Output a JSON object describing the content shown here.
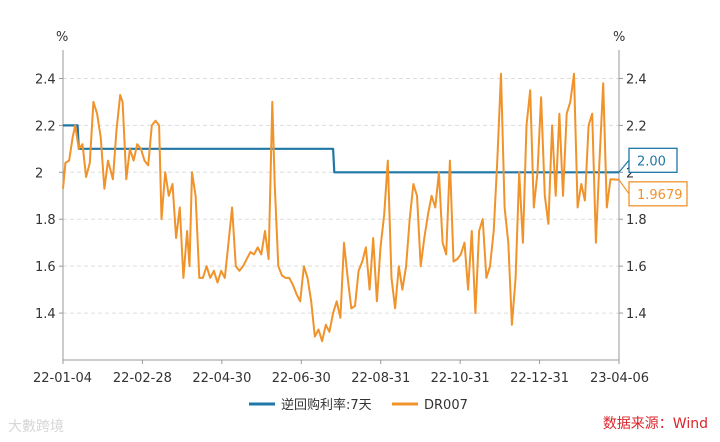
{
  "chart_data": {
    "type": "line",
    "unit_left": "%",
    "unit_right": "%",
    "ylim": [
      1.2,
      2.5
    ],
    "yticks": [
      "1.4",
      "1.6",
      "1.8",
      "2",
      "2.2",
      "2.4"
    ],
    "x_ticks": [
      "22-01-04",
      "22-02-28",
      "22-04-30",
      "22-06-30",
      "22-08-31",
      "22-10-31",
      "22-12-31",
      "23-04-06"
    ],
    "x_start": "2022-01-04",
    "x_end": "2023-04-06",
    "grid": "horizontal dashed",
    "legend_position": "bottom",
    "series": [
      {
        "name": "逆回购利率:7天",
        "color": "#1f77a8",
        "points": [
          [
            "2022-01-04",
            2.2
          ],
          [
            "2022-01-16",
            2.2
          ],
          [
            "2022-01-17",
            2.1
          ],
          [
            "2022-08-14",
            2.1
          ],
          [
            "2022-08-15",
            2.0
          ],
          [
            "2023-04-06",
            2.0
          ]
        ],
        "end_label": "2.00"
      },
      {
        "name": "DR007",
        "color": "#f0932b",
        "points": [
          [
            "2022-01-04",
            1.93
          ],
          [
            "2022-01-06",
            2.04
          ],
          [
            "2022-01-09",
            2.05
          ],
          [
            "2022-01-12",
            2.15
          ],
          [
            "2022-01-14",
            2.2
          ],
          [
            "2022-01-17",
            2.1
          ],
          [
            "2022-01-20",
            2.12
          ],
          [
            "2022-01-23",
            1.98
          ],
          [
            "2022-01-26",
            2.04
          ],
          [
            "2022-01-29",
            2.3
          ],
          [
            "2022-02-01",
            2.25
          ],
          [
            "2022-02-04",
            2.15
          ],
          [
            "2022-02-07",
            1.93
          ],
          [
            "2022-02-10",
            2.05
          ],
          [
            "2022-02-14",
            1.97
          ],
          [
            "2022-02-17",
            2.18
          ],
          [
            "2022-02-20",
            2.33
          ],
          [
            "2022-02-22",
            2.3
          ],
          [
            "2022-02-25",
            1.97
          ],
          [
            "2022-02-28",
            2.1
          ],
          [
            "2022-03-03",
            2.05
          ],
          [
            "2022-03-06",
            2.12
          ],
          [
            "2022-03-09",
            2.1
          ],
          [
            "2022-03-12",
            2.05
          ],
          [
            "2022-03-15",
            2.03
          ],
          [
            "2022-03-18",
            2.2
          ],
          [
            "2022-03-21",
            2.22
          ],
          [
            "2022-03-24",
            2.2
          ],
          [
            "2022-03-26",
            1.8
          ],
          [
            "2022-03-29",
            2.0
          ],
          [
            "2022-04-01",
            1.9
          ],
          [
            "2022-04-04",
            1.95
          ],
          [
            "2022-04-07",
            1.72
          ],
          [
            "2022-04-10",
            1.85
          ],
          [
            "2022-04-13",
            1.55
          ],
          [
            "2022-04-16",
            1.75
          ],
          [
            "2022-04-18",
            1.6
          ],
          [
            "2022-04-20",
            2.0
          ],
          [
            "2022-04-23",
            1.9
          ],
          [
            "2022-04-26",
            1.55
          ],
          [
            "2022-04-29",
            1.55
          ],
          [
            "2022-05-02",
            1.6
          ],
          [
            "2022-05-05",
            1.55
          ],
          [
            "2022-05-08",
            1.58
          ],
          [
            "2022-05-11",
            1.53
          ],
          [
            "2022-05-14",
            1.58
          ],
          [
            "2022-05-17",
            1.55
          ],
          [
            "2022-05-20",
            1.7
          ],
          [
            "2022-05-23",
            1.85
          ],
          [
            "2022-05-26",
            1.6
          ],
          [
            "2022-05-29",
            1.58
          ],
          [
            "2022-06-01",
            1.6
          ],
          [
            "2022-06-04",
            1.63
          ],
          [
            "2022-06-07",
            1.66
          ],
          [
            "2022-06-10",
            1.65
          ],
          [
            "2022-06-13",
            1.68
          ],
          [
            "2022-06-16",
            1.65
          ],
          [
            "2022-06-19",
            1.75
          ],
          [
            "2022-06-22",
            1.63
          ],
          [
            "2022-06-25",
            2.3
          ],
          [
            "2022-06-27",
            1.95
          ],
          [
            "2022-06-30",
            1.6
          ],
          [
            "2022-07-03",
            1.56
          ],
          [
            "2022-07-06",
            1.55
          ],
          [
            "2022-07-09",
            1.55
          ],
          [
            "2022-07-12",
            1.52
          ],
          [
            "2022-07-15",
            1.48
          ],
          [
            "2022-07-18",
            1.45
          ],
          [
            "2022-07-21",
            1.6
          ],
          [
            "2022-07-24",
            1.55
          ],
          [
            "2022-07-27",
            1.45
          ],
          [
            "2022-07-30",
            1.3
          ],
          [
            "2022-08-02",
            1.33
          ],
          [
            "2022-08-05",
            1.28
          ],
          [
            "2022-08-08",
            1.35
          ],
          [
            "2022-08-11",
            1.32
          ],
          [
            "2022-08-14",
            1.4
          ],
          [
            "2022-08-17",
            1.45
          ],
          [
            "2022-08-20",
            1.38
          ],
          [
            "2022-08-23",
            1.7
          ],
          [
            "2022-08-26",
            1.55
          ],
          [
            "2022-08-29",
            1.42
          ],
          [
            "2022-09-01",
            1.43
          ],
          [
            "2022-09-04",
            1.58
          ],
          [
            "2022-09-07",
            1.62
          ],
          [
            "2022-09-10",
            1.68
          ],
          [
            "2022-09-13",
            1.5
          ],
          [
            "2022-09-16",
            1.72
          ],
          [
            "2022-09-19",
            1.45
          ],
          [
            "2022-09-22",
            1.68
          ],
          [
            "2022-09-25",
            1.82
          ],
          [
            "2022-09-28",
            2.05
          ],
          [
            "2022-10-01",
            1.55
          ],
          [
            "2022-10-04",
            1.42
          ],
          [
            "2022-10-07",
            1.6
          ],
          [
            "2022-10-10",
            1.5
          ],
          [
            "2022-10-13",
            1.6
          ],
          [
            "2022-10-16",
            1.8
          ],
          [
            "2022-10-19",
            1.95
          ],
          [
            "2022-10-22",
            1.9
          ],
          [
            "2022-10-25",
            1.6
          ],
          [
            "2022-10-28",
            1.72
          ],
          [
            "2022-10-31",
            1.82
          ],
          [
            "2022-11-03",
            1.9
          ],
          [
            "2022-11-06",
            1.85
          ],
          [
            "2022-11-09",
            2.0
          ],
          [
            "2022-11-12",
            1.7
          ],
          [
            "2022-11-15",
            1.65
          ],
          [
            "2022-11-18",
            2.05
          ],
          [
            "2022-11-21",
            1.62
          ],
          [
            "2022-11-24",
            1.63
          ],
          [
            "2022-11-27",
            1.65
          ],
          [
            "2022-11-30",
            1.7
          ],
          [
            "2022-12-03",
            1.5
          ],
          [
            "2022-12-06",
            1.75
          ],
          [
            "2022-12-09",
            1.4
          ],
          [
            "2022-12-12",
            1.75
          ],
          [
            "2022-12-15",
            1.8
          ],
          [
            "2022-12-18",
            1.55
          ],
          [
            "2022-12-21",
            1.6
          ],
          [
            "2022-12-24",
            1.75
          ],
          [
            "2022-12-27",
            2.05
          ],
          [
            "2022-12-30",
            2.42
          ],
          [
            "2023-01-02",
            1.85
          ],
          [
            "2023-01-05",
            1.7
          ],
          [
            "2023-01-08",
            1.35
          ],
          [
            "2023-01-11",
            1.55
          ],
          [
            "2023-01-14",
            2.0
          ],
          [
            "2023-01-17",
            1.7
          ],
          [
            "2023-01-20",
            2.2
          ],
          [
            "2023-01-23",
            2.35
          ],
          [
            "2023-01-26",
            1.85
          ],
          [
            "2023-01-29",
            2.0
          ],
          [
            "2023-02-01",
            2.32
          ],
          [
            "2023-02-04",
            1.9
          ],
          [
            "2023-02-07",
            1.78
          ],
          [
            "2023-02-10",
            2.2
          ],
          [
            "2023-02-13",
            1.9
          ],
          [
            "2023-02-16",
            2.25
          ],
          [
            "2023-02-19",
            1.9
          ],
          [
            "2023-02-22",
            2.25
          ],
          [
            "2023-02-25",
            2.3
          ],
          [
            "2023-02-28",
            2.42
          ],
          [
            "2023-03-03",
            1.85
          ],
          [
            "2023-03-06",
            1.95
          ],
          [
            "2023-03-09",
            1.88
          ],
          [
            "2023-03-12",
            2.2
          ],
          [
            "2023-03-15",
            2.25
          ],
          [
            "2023-03-18",
            1.7
          ],
          [
            "2023-03-21",
            2.05
          ],
          [
            "2023-03-24",
            2.38
          ],
          [
            "2023-03-27",
            1.85
          ],
          [
            "2023-03-30",
            1.97
          ],
          [
            "2023-04-06",
            1.9679
          ]
        ],
        "end_label": "1.9679"
      }
    ]
  },
  "source_text": "数据来源：Wind",
  "watermark_text": "大數跨境"
}
